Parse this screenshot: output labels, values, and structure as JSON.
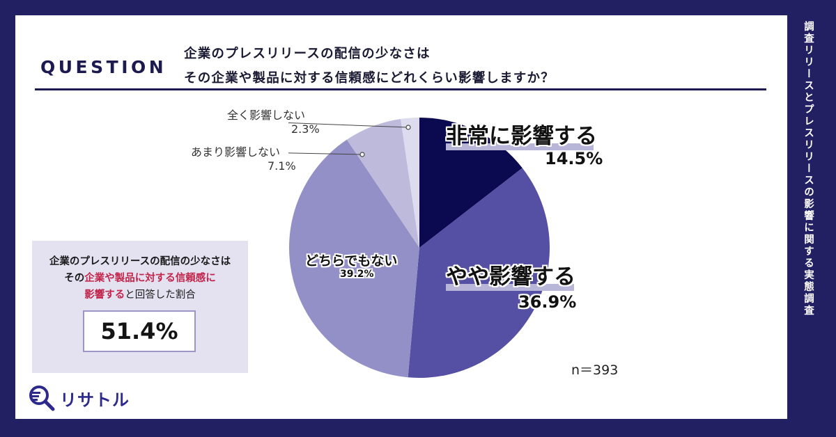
{
  "sidebar": {
    "title": "調査リリースとプレスリリースの影響に関する実態調査"
  },
  "question": {
    "label": "QUESTION",
    "line1": "企業のプレスリリースの配信の少なさは",
    "line2": "その企業や製品に対する信頼感にどれくらい影響しますか？"
  },
  "summary": {
    "line1": "企業のプレスリリースの配信の少なさは",
    "line2_prefix": "その",
    "line2_highlight": "企業や製品に対する信頼感に",
    "line3_highlight": "影響する",
    "line3_suffix": "と回答した割合",
    "value": "51.4%"
  },
  "sample": {
    "n_label": "n＝393"
  },
  "logo": {
    "text": "リサトル"
  },
  "colors": {
    "frame": "#221f63",
    "slice1": "#0b0950",
    "slice2": "#5550a3",
    "slice3": "#9390c8",
    "slice4": "#bdbadb",
    "slice5": "#dddbee",
    "highlight": "#c2244a"
  },
  "chart_data": {
    "type": "pie",
    "title": "企業のプレスリリースの配信の少なさはその企業や製品に対する信頼感にどれくらい影響しますか？",
    "categories": [
      "非常に影響する",
      "やや影響する",
      "どちらでもない",
      "あまり影響しない",
      "全く影響しない"
    ],
    "values": [
      14.5,
      36.9,
      39.2,
      7.1,
      2.3
    ],
    "labels": [
      "14.5%",
      "36.9%",
      "39.2%",
      "7.1%",
      "2.3%"
    ],
    "n": 393,
    "start_angle": "12 o'clock, clockwise"
  }
}
